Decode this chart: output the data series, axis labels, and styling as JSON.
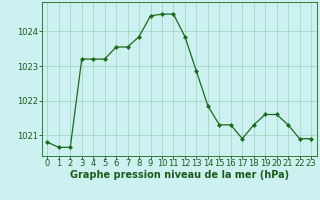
{
  "x": [
    0,
    1,
    2,
    3,
    4,
    5,
    6,
    7,
    8,
    9,
    10,
    11,
    12,
    13,
    14,
    15,
    16,
    17,
    18,
    19,
    20,
    21,
    22,
    23
  ],
  "y": [
    1020.8,
    1020.65,
    1020.65,
    1023.2,
    1023.2,
    1023.2,
    1023.55,
    1023.55,
    1023.85,
    1024.45,
    1024.5,
    1024.5,
    1023.85,
    1022.85,
    1021.85,
    1021.3,
    1021.3,
    1020.9,
    1021.3,
    1021.6,
    1021.6,
    1021.3,
    1020.9,
    1020.9
  ],
  "line_color": "#1a6b1a",
  "marker": "D",
  "marker_size": 2.0,
  "bg_color": "#cdf0f0",
  "grid_color": "#a0d8c8",
  "ylabel_ticks": [
    1021,
    1022,
    1023,
    1024
  ],
  "xlabel_label": "Graphe pression niveau de la mer (hPa)",
  "xlim": [
    -0.5,
    23.5
  ],
  "ylim": [
    1020.4,
    1024.85
  ],
  "line_width": 0.9,
  "label_color": "#1a5c1a",
  "tick_color": "#1a5c1a",
  "xlabel_fontsize": 7.0,
  "tick_fontsize": 6.0
}
